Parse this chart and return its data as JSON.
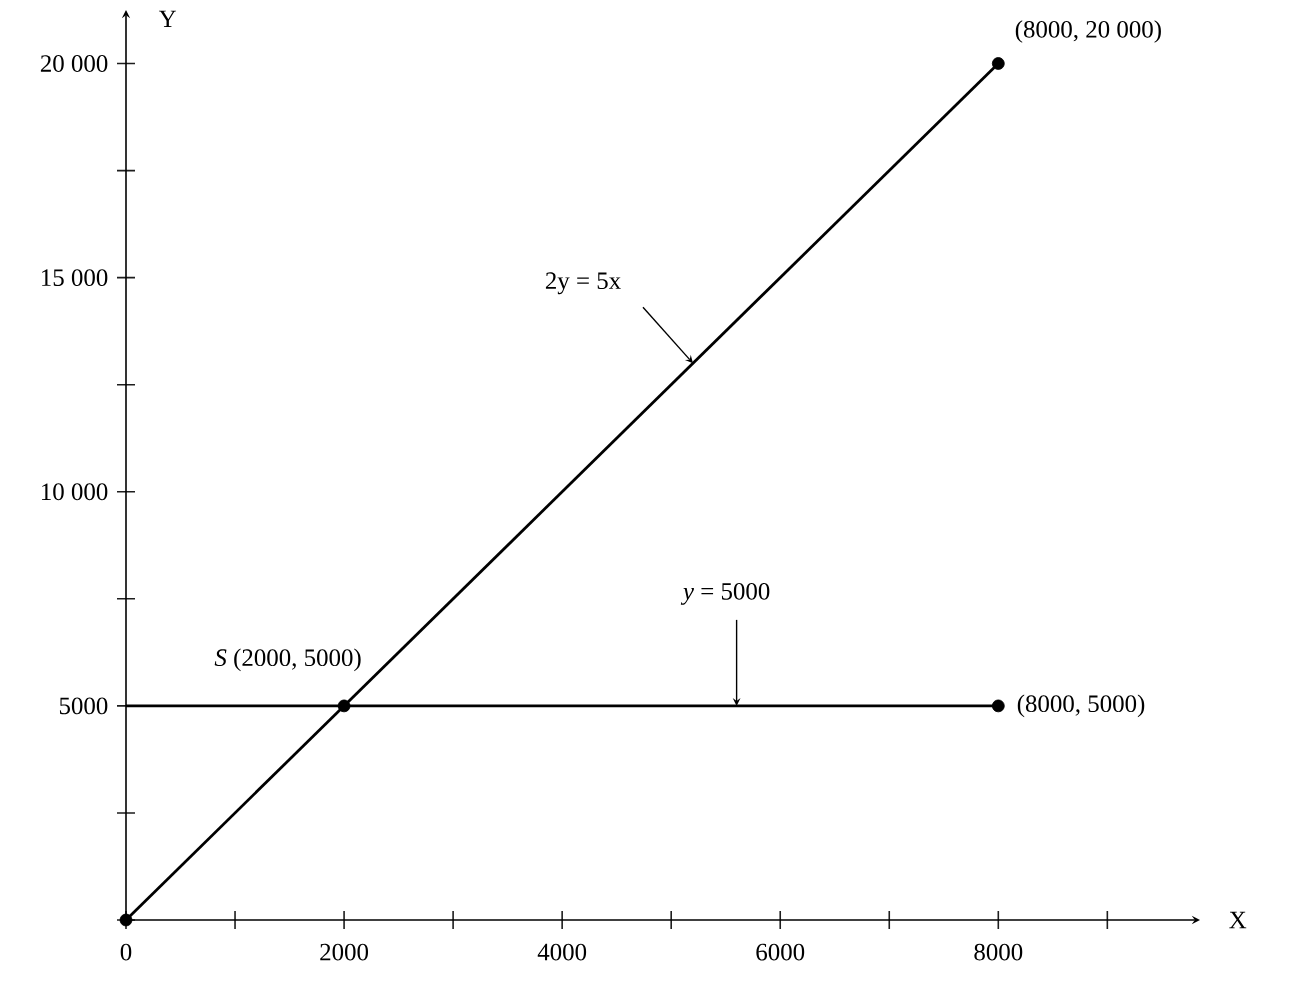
{
  "chart_data": {
    "type": "line",
    "xlabel": "X",
    "ylabel": "Y",
    "xlim": [
      0,
      9850
    ],
    "ylim": [
      0,
      21250
    ],
    "xticks": [
      0,
      {
        "value": 1000,
        "label": null
      },
      2000,
      {
        "value": 3000,
        "label": null
      },
      4000,
      {
        "value": 5000,
        "label": null
      },
      6000,
      {
        "value": 7000,
        "label": null
      },
      8000,
      {
        "value": 9000,
        "label": null
      }
    ],
    "yticks": [
      {
        "value": 0,
        "label": null
      },
      {
        "value": 2500,
        "label": null
      },
      5000,
      {
        "value": 7500,
        "label": null
      },
      {
        "value": 10000,
        "label": "10 000"
      },
      {
        "value": 12500,
        "label": null
      },
      {
        "value": 15000,
        "label": "15 000"
      },
      {
        "value": 17500,
        "label": null
      },
      {
        "value": 20000,
        "label": "20 000"
      }
    ],
    "series": [
      {
        "type": "line",
        "color": "#000000",
        "x": [
          0,
          8000
        ],
        "values": [
          0,
          20000
        ]
      },
      {
        "type": "line",
        "color": "#000000",
        "x": [
          0,
          8000
        ],
        "values": [
          5000,
          5000
        ]
      },
      {
        "type": "scatter",
        "color": "#000000",
        "marker": "circle",
        "x": [
          0,
          2000,
          8000,
          8000
        ],
        "values": [
          0,
          5000,
          20000,
          5000
        ]
      }
    ],
    "line_style": "solid",
    "annotations": [
      {
        "text": "(8000, 20 000)",
        "x": 8000,
        "y": 20000
      },
      {
        "text": "(8000, 5000)",
        "x": 8000,
        "y": 5000
      },
      {
        "text": "*S* (2000, 5000)",
        "x": 2000,
        "y": 5000
      },
      {
        "text": "2y = 5x",
        "x": 5200,
        "y": 13000
      },
      {
        "text": "*y* = 5000",
        "x": 5600,
        "y": 5000
      }
    ]
  }
}
